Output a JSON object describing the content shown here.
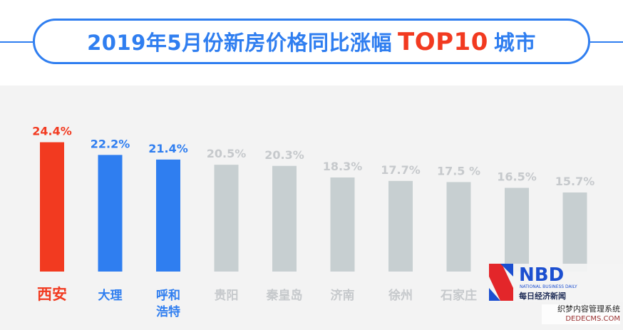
{
  "title": {
    "prefix": "2019年5月份新房价格同比涨幅",
    "highlight": "TOP10",
    "suffix": "城市"
  },
  "colors": {
    "top1": "#f23a20",
    "top2_3": "#2f7ef0",
    "others_bar": "#c7cfd1",
    "others_label": "#c6c9cc",
    "top1_label": "#f23a20",
    "top2_3_label": "#2f7ef0"
  },
  "chart_data": {
    "type": "bar",
    "categories": [
      "西安",
      "大理",
      "呼和浩特",
      "贵阳",
      "秦皇岛",
      "济南",
      "徐州",
      "石家庄",
      "",
      ""
    ],
    "category_lines": [
      [
        "西安"
      ],
      [
        "大理"
      ],
      [
        "呼和",
        "浩特"
      ],
      [
        "贵阳"
      ],
      [
        "秦皇岛"
      ],
      [
        "济南"
      ],
      [
        "徐州"
      ],
      [
        "石家庄"
      ],
      [
        ""
      ],
      [
        ""
      ]
    ],
    "values": [
      24.4,
      22.2,
      21.4,
      20.5,
      20.3,
      18.3,
      17.7,
      17.5,
      16.5,
      15.7
    ],
    "value_labels": [
      "24.4%",
      "22.2%",
      "21.4%",
      "20.5%",
      "20.3%",
      "18.3%",
      "17.7%",
      "17.5 %",
      "16.5%",
      "15.7%"
    ],
    "title": "2019年5月份新房价格同比涨幅 TOP10 城市",
    "xlabel": "",
    "ylabel": "",
    "grid": false,
    "legend": "none"
  },
  "logo": {
    "brand": "NBD",
    "english": "NATIONAL BUSINESS DAILY",
    "chinese": "每日经济新闻"
  },
  "watermark": {
    "line1": "织梦内容管理系统",
    "line2": "DEDECMS.COM"
  }
}
